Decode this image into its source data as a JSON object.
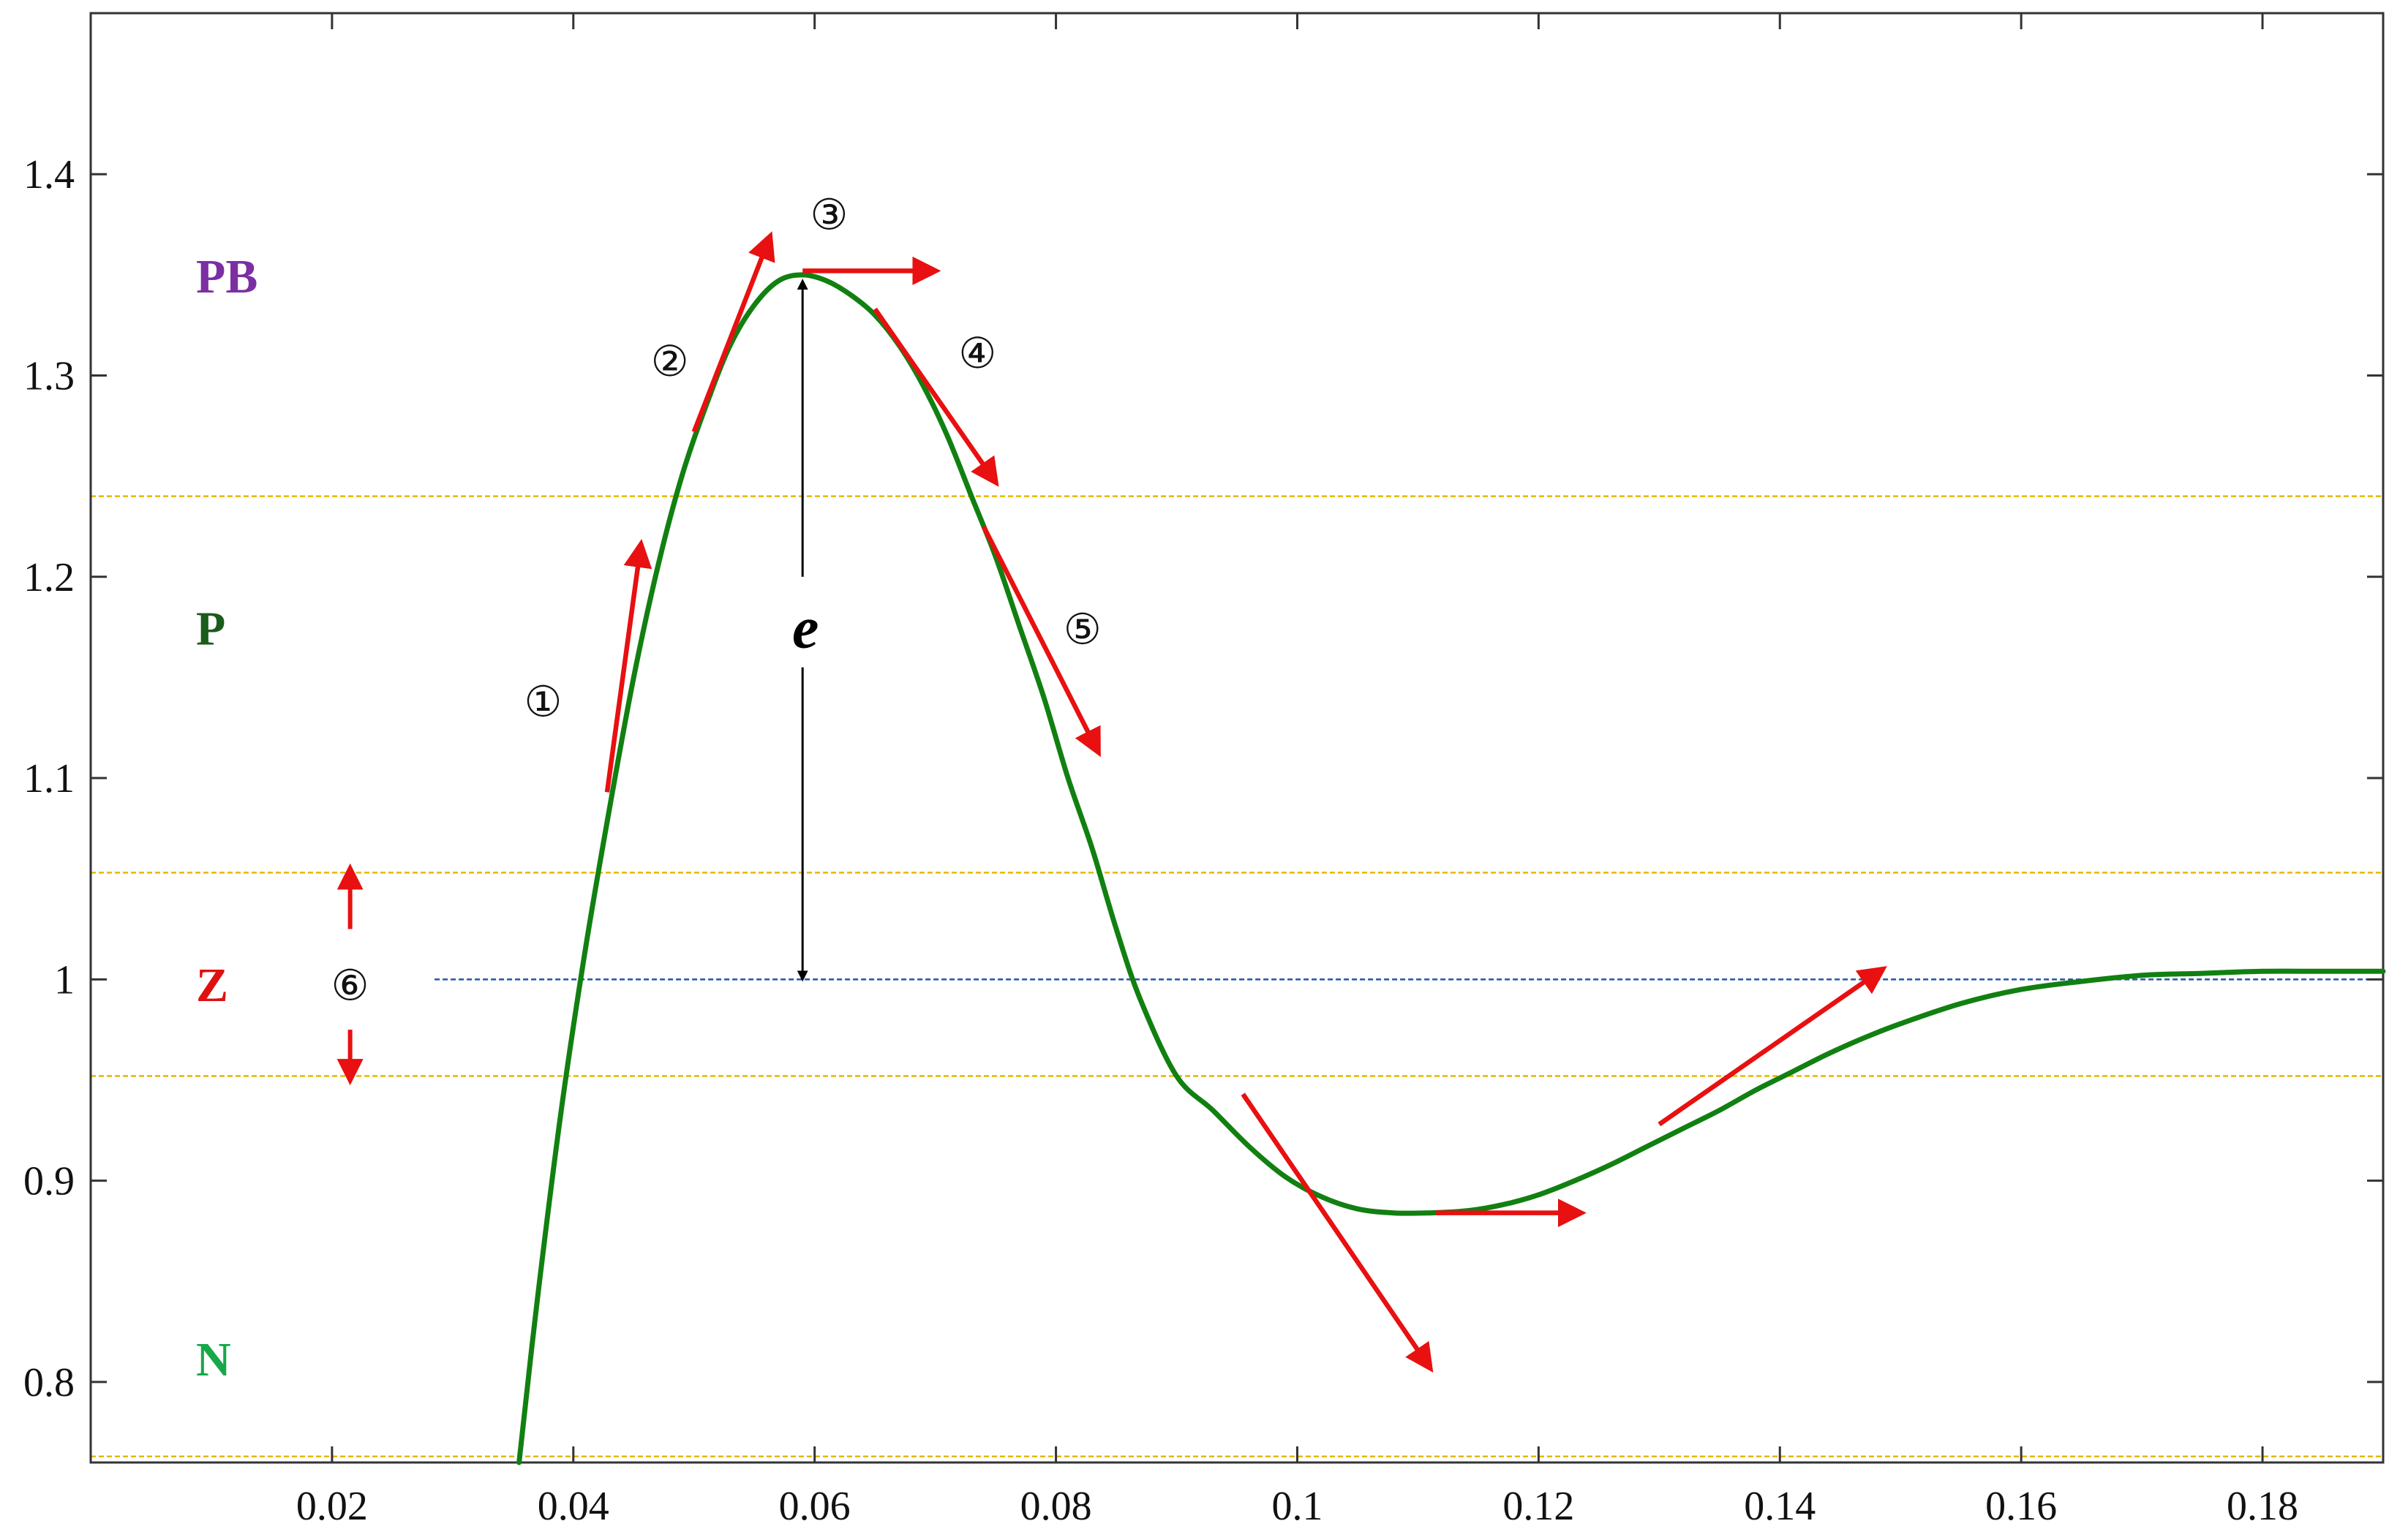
{
  "chart_data": {
    "type": "line",
    "title": "",
    "xlabel": "",
    "ylabel": "",
    "xlim": [
      0,
      0.19
    ],
    "ylim": [
      0.76,
      1.48
    ],
    "grid": false,
    "x_ticks": [
      0.02,
      0.04,
      0.06,
      0.08,
      0.1,
      0.12,
      0.14,
      0.16,
      0.18
    ],
    "x_tick_labels": [
      "0.02",
      "0.04",
      "0.06",
      "0.08",
      "0.1",
      "0.12",
      "0.14",
      "0.16",
      "0.18"
    ],
    "y_ticks": [
      0.8,
      0.9,
      1.0,
      1.1,
      1.2,
      1.3,
      1.4
    ],
    "y_tick_labels": [
      "0.8",
      "0.9",
      "1",
      "1.1",
      "1.2",
      "1.3",
      "1.4"
    ],
    "series": [
      {
        "color": "#118011",
        "x": [
          0.0355,
          0.037,
          0.039,
          0.041,
          0.043,
          0.045,
          0.047,
          0.049,
          0.051,
          0.053,
          0.055,
          0.057,
          0.059,
          0.061,
          0.063,
          0.065,
          0.067,
          0.069,
          0.071,
          0.073,
          0.075,
          0.077,
          0.079,
          0.081,
          0.083,
          0.085,
          0.087,
          0.09,
          0.093,
          0.096,
          0.099,
          0.102,
          0.105,
          0.108,
          0.111,
          0.114,
          0.117,
          0.12,
          0.123,
          0.126,
          0.129,
          0.132,
          0.135,
          0.138,
          0.141,
          0.144,
          0.147,
          0.15,
          0.155,
          0.16,
          0.165,
          0.17,
          0.175,
          0.18,
          0.185,
          0.19
        ],
        "y": [
          0.76,
          0.84,
          0.935,
          1.015,
          1.085,
          1.15,
          1.205,
          1.25,
          1.285,
          1.315,
          1.335,
          1.347,
          1.35,
          1.347,
          1.34,
          1.33,
          1.315,
          1.295,
          1.27,
          1.24,
          1.21,
          1.175,
          1.14,
          1.1,
          1.065,
          1.025,
          0.99,
          0.952,
          0.935,
          0.917,
          0.902,
          0.892,
          0.886,
          0.884,
          0.884,
          0.885,
          0.888,
          0.893,
          0.9,
          0.908,
          0.917,
          0.926,
          0.935,
          0.945,
          0.954,
          0.963,
          0.971,
          0.978,
          0.988,
          0.995,
          0.999,
          1.002,
          1.003,
          1.004,
          1.004,
          1.004
        ]
      }
    ],
    "reference_lines": [
      {
        "y": 1.0,
        "color": "#2255aa",
        "x_from": 0.0285,
        "x_to": 0.19
      },
      {
        "y": 1.24,
        "color": "#e6b800"
      },
      {
        "y": 1.053,
        "color": "#e6b800"
      },
      {
        "y": 0.952,
        "color": "#e6b800"
      },
      {
        "y": 0.763,
        "color": "#e6b800"
      }
    ],
    "zones": [
      {
        "label": "PB",
        "y": 1.35,
        "color": "#7b2fa3"
      },
      {
        "label": "P",
        "y": 1.175,
        "color": "#1a5c1a"
      },
      {
        "label": "Z",
        "y": 0.998,
        "color": "#e01010"
      },
      {
        "label": "N",
        "y": 0.812,
        "color": "#17a84a"
      }
    ],
    "tangent_arrows": [
      {
        "from": [
          0.0428,
          1.093
        ],
        "to": [
          0.0456,
          1.216
        ],
        "color": "#e81010"
      },
      {
        "from": [
          0.05,
          1.272
        ],
        "to": [
          0.0563,
          1.369
        ],
        "color": "#e81010"
      },
      {
        "from": [
          0.059,
          1.352
        ],
        "to": [
          0.07,
          1.352
        ],
        "color": "#e81010"
      },
      {
        "from": [
          0.065,
          1.333
        ],
        "to": [
          0.075,
          1.247
        ],
        "color": "#e81010"
      },
      {
        "from": [
          0.074,
          1.225
        ],
        "to": [
          0.0835,
          1.113
        ],
        "color": "#e81010"
      },
      {
        "from": [
          0.0955,
          0.943
        ],
        "to": [
          0.111,
          0.807
        ],
        "color": "#e81010"
      },
      {
        "from": [
          0.1115,
          0.884
        ],
        "to": [
          0.1235,
          0.884
        ],
        "color": "#e81010"
      },
      {
        "from": [
          0.13,
          0.928
        ],
        "to": [
          0.1485,
          1.005
        ],
        "color": "#e81010"
      }
    ],
    "step_labels": [
      {
        "text": "①",
        "x": 0.0375,
        "y": 1.138
      },
      {
        "text": "②",
        "x": 0.048,
        "y": 1.307
      },
      {
        "text": "③",
        "x": 0.0612,
        "y": 1.38
      },
      {
        "text": "④",
        "x": 0.0735,
        "y": 1.311
      },
      {
        "text": "⑤",
        "x": 0.0822,
        "y": 1.174
      },
      {
        "text": "⑥",
        "x": 0.0215,
        "y": 0.997
      }
    ],
    "error_marker": {
      "label": "e",
      "x": 0.059,
      "y_top": 1.347,
      "y_bottom": 1.0,
      "label_y": 1.175,
      "gap": [
        1.2,
        1.155
      ]
    },
    "band_arrows": {
      "x": 0.0215,
      "center": 0.999,
      "up_to": 1.055,
      "down_to": 0.95,
      "gap": [
        1.025,
        0.975
      ],
      "color": "#e81010"
    }
  }
}
